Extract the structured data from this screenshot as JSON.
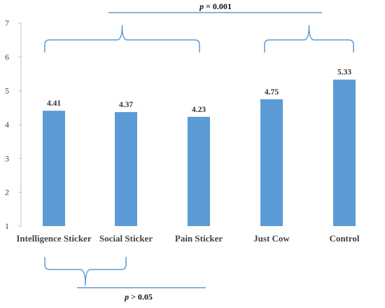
{
  "chart_data": {
    "type": "bar",
    "categories": [
      "Intelligence Sticker",
      "Social Sticker",
      "Pain Sticker",
      "Just Cow",
      "Control"
    ],
    "values": [
      4.41,
      4.37,
      4.23,
      4.75,
      5.33
    ],
    "data_labels": [
      "4.41",
      "4.37",
      "4.23",
      "4.75",
      "5.33"
    ],
    "ylim": [
      1,
      7
    ],
    "yticks": [
      "1",
      "2",
      "3",
      "4",
      "5",
      "6",
      "7"
    ],
    "grid": false,
    "bar_color": "#5b9bd5",
    "annotations": [
      {
        "p_label": "p",
        "text": " = 0.001",
        "compares": [
          "Intelligence Sticker – Pain Sticker",
          "Just Cow – Control"
        ]
      },
      {
        "p_label": "p",
        "text": " > 0.05",
        "compares": [
          "Intelligence Sticker",
          "Social Sticker"
        ]
      }
    ]
  },
  "colors": {
    "bar": "#5b9bd5",
    "bracket": "#5b9bd5",
    "axis": "#bfbfbf"
  }
}
